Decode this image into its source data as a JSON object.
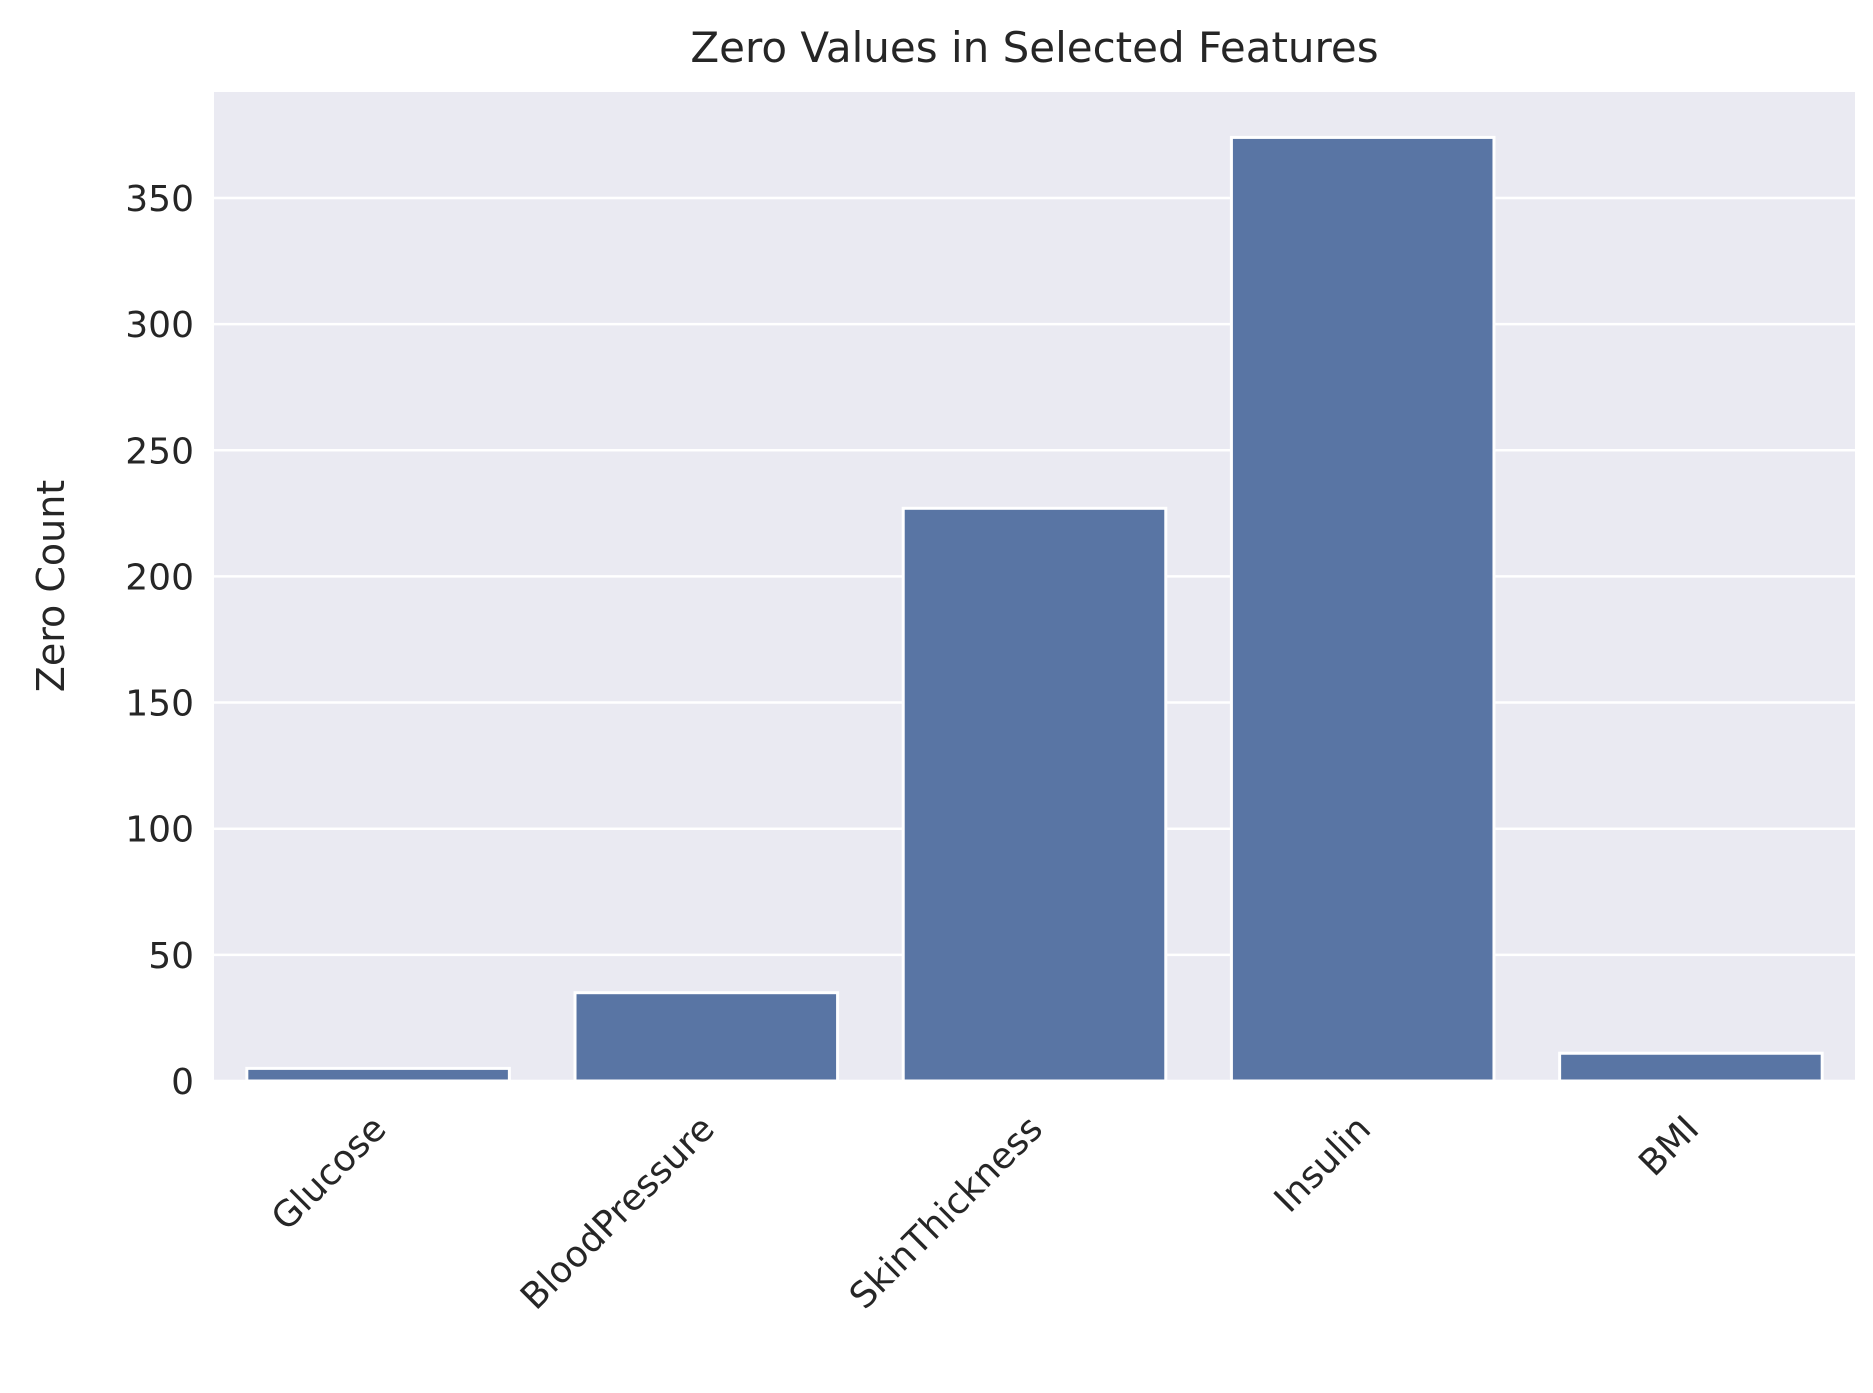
{
  "chart_data": {
    "type": "bar",
    "title": "Zero Values in Selected Features",
    "xlabel": "",
    "ylabel": "Zero Count",
    "categories": [
      "Glucose",
      "BloodPressure",
      "SkinThickness",
      "Insulin",
      "BMI"
    ],
    "values": [
      5,
      35,
      227,
      374,
      11
    ],
    "ylim": [
      0,
      392
    ],
    "yticks": [
      0,
      50,
      100,
      150,
      200,
      250,
      300,
      350
    ],
    "grid": true,
    "legend": "none",
    "colors": {
      "bar": "#5975a4",
      "plot_background": "#eaeaf2",
      "grid": "#ffffff",
      "text": "#262626"
    }
  }
}
